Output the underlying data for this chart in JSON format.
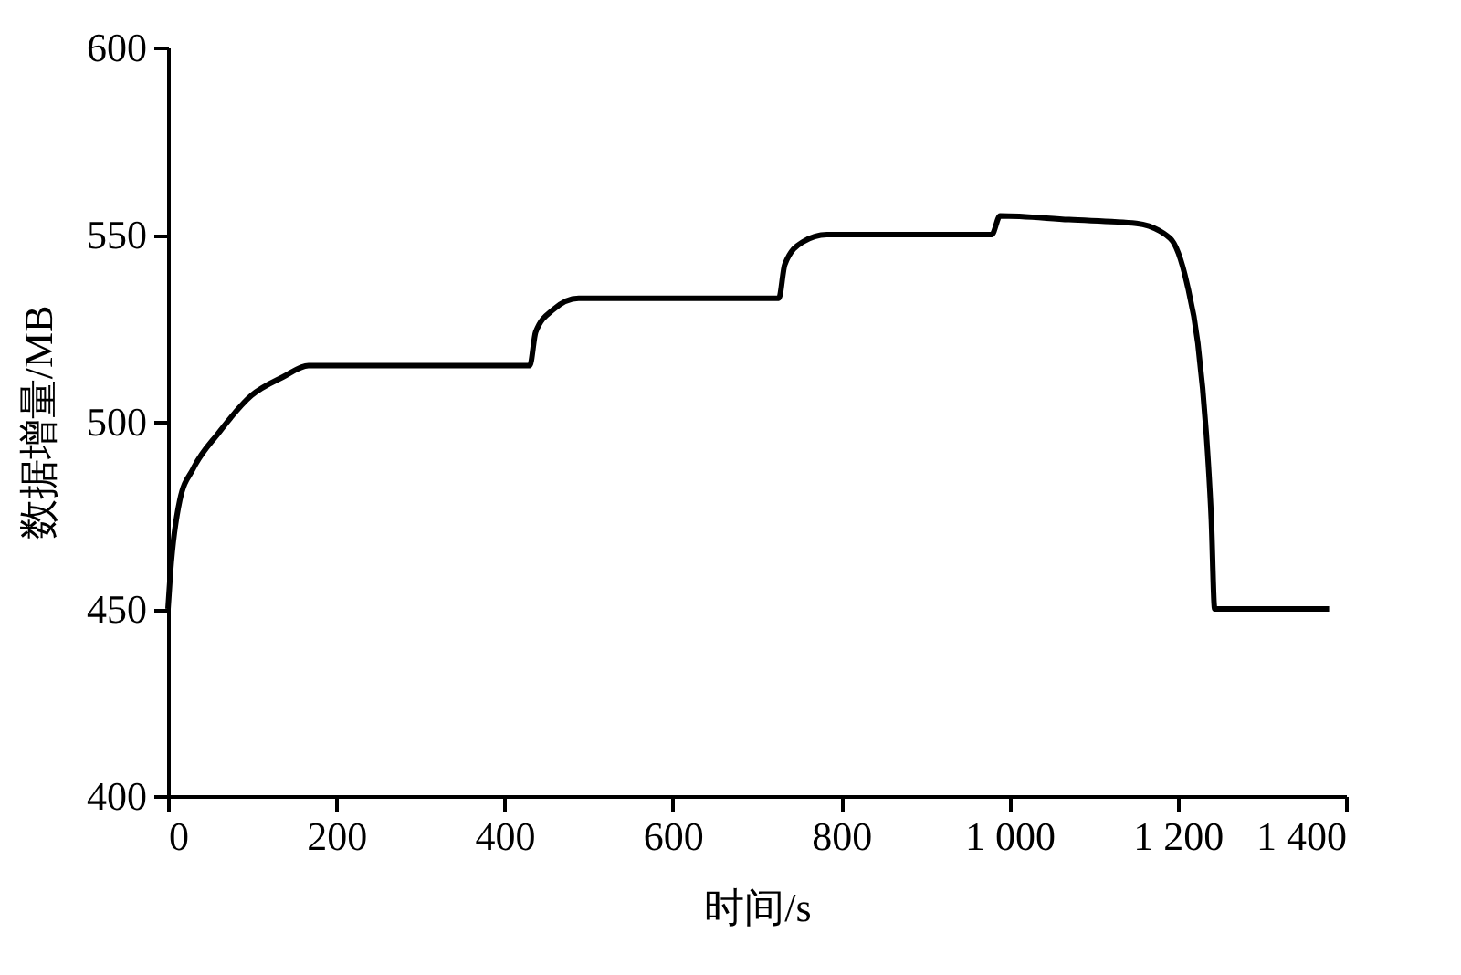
{
  "chart_data": {
    "type": "line",
    "xlabel": "时间/s",
    "ylabel": "数据增量/MB",
    "xlim": [
      0,
      1400
    ],
    "xticks": [
      0,
      200,
      400,
      600,
      800,
      {
        "value": 1000,
        "label": "1 000"
      },
      {
        "value": 1200,
        "label": "1 200"
      },
      {
        "value": 1400,
        "label": "1 400"
      }
    ],
    "ylim": [
      400,
      600
    ],
    "yticks": [
      400,
      450,
      500,
      550,
      600
    ],
    "grid": false,
    "marker": "none",
    "line_style": "solid",
    "series": [
      {
        "color": "#000000",
        "x": [
          0,
          3,
          14,
          30,
          60,
          99,
          137,
          167,
          430,
          437,
          458,
          488,
          726,
          733,
          754,
          783,
          979,
          989,
          1071,
          1151,
          1191,
          1211,
          1224,
          1234,
          1240,
          1244,
          1380
        ],
        "values": [
          450,
          460,
          479,
          487.5,
          497,
          507,
          512,
          515,
          515,
          524,
          530,
          533,
          533,
          542,
          548,
          550,
          550,
          555,
          554,
          553,
          549,
          537,
          521,
          497,
          474,
          450,
          450
        ]
      }
    ]
  }
}
